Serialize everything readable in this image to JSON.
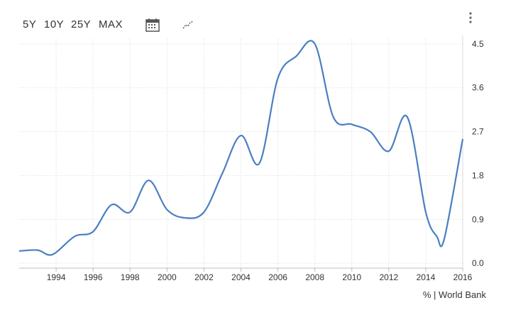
{
  "toolbar": {
    "ranges": [
      "5Y",
      "10Y",
      "25Y",
      "MAX"
    ],
    "calendar_icon": "calendar-icon",
    "chart_type_icon": "line-chart-icon",
    "menu_icon": "vertical-dots-menu-icon"
  },
  "source_label": "% | World Bank",
  "colors": {
    "line": "#4a7fc1",
    "grid": "#d9d9d9",
    "axis": "#bdbdbd"
  },
  "chart_data": {
    "type": "line",
    "title": "",
    "xlabel": "",
    "ylabel": "",
    "unit": "%",
    "x_ticks": [
      1994,
      1996,
      1998,
      2000,
      2002,
      2004,
      2006,
      2008,
      2010,
      2012,
      2014,
      2016
    ],
    "y_ticks": [
      0.0,
      0.9,
      1.8,
      2.7,
      3.6,
      4.5
    ],
    "y_tick_labels": [
      "0.0",
      "0.9",
      "1.8",
      "2.7",
      "3.6",
      "4.5"
    ],
    "xlim": [
      1992,
      2016
    ],
    "ylim": [
      -0.1,
      4.6
    ],
    "grid": true,
    "series": [
      {
        "name": "",
        "x": [
          1992,
          1993,
          1993.8,
          1995,
          1996,
          1997,
          1998,
          1999,
          2000,
          2001,
          2002,
          2003,
          2004,
          2005,
          2006,
          2007,
          2008,
          2009,
          2010,
          2011,
          2012,
          2013,
          2014,
          2014.6,
          2015,
          2016
        ],
        "y": [
          0.25,
          0.27,
          0.18,
          0.55,
          0.65,
          1.2,
          1.05,
          1.7,
          1.1,
          0.93,
          1.05,
          1.85,
          2.62,
          2.05,
          3.8,
          4.25,
          4.5,
          3.0,
          2.85,
          2.7,
          2.3,
          3.0,
          1.05,
          0.55,
          0.5,
          2.55
        ]
      }
    ]
  }
}
